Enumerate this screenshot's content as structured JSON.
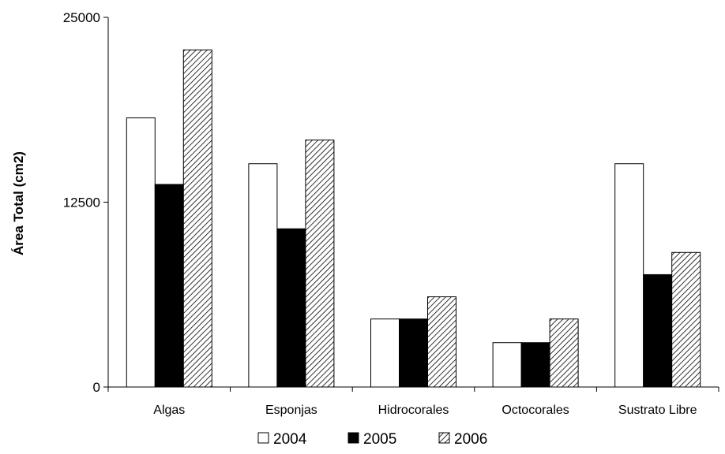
{
  "chart_data": {
    "type": "bar",
    "title": "",
    "xlabel": "",
    "ylabel": "Área Total (cm2)",
    "ylim": [
      0,
      25000
    ],
    "yticks": [
      "0",
      "12500",
      "25000"
    ],
    "grid": false,
    "legend_position": "bottom",
    "categories": [
      "Algas",
      "Esponjas",
      "Hidrocorales",
      "Octocorales",
      "Sustrato Libre"
    ],
    "series": [
      {
        "name": "2004",
        "fill": "white",
        "values": [
          18200,
          15100,
          4600,
          3000,
          15100
        ]
      },
      {
        "name": "2005",
        "fill": "black",
        "values": [
          13700,
          10700,
          4600,
          3000,
          7600
        ]
      },
      {
        "name": "2006",
        "fill": "hatched",
        "values": [
          22800,
          16700,
          6100,
          4600,
          9100
        ]
      }
    ]
  }
}
